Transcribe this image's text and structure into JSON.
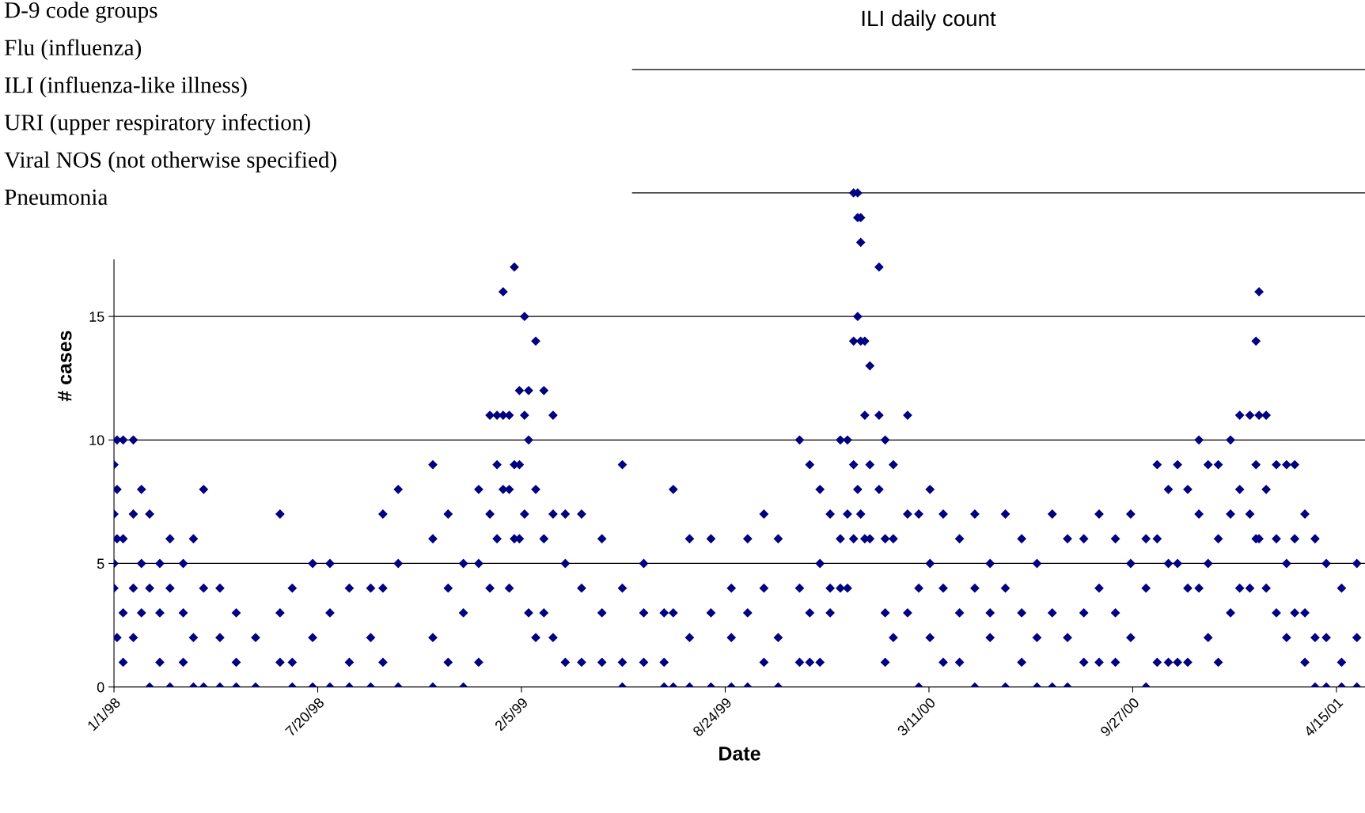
{
  "chart_data": {
    "type": "scatter",
    "title": "ILI daily count",
    "xlabel": "Date",
    "ylabel": "# cases",
    "annotations": [
      "D-9 code groups",
      "Flu (influenza)",
      "ILI (influenza-like illness)",
      "URI (upper respiratory infection)",
      "Viral NOS (not otherwise specified)",
      "Pneumonia"
    ],
    "xlim": [
      "1998-01-01",
      "2001-05-13"
    ],
    "xticks": [
      {
        "value": "1998-01-01",
        "label": "1/1/98"
      },
      {
        "value": "1998-07-20",
        "label": "7/20/98"
      },
      {
        "value": "1999-02-05",
        "label": "2/5/99"
      },
      {
        "value": "1999-08-24",
        "label": "8/24/99"
      },
      {
        "value": "2000-03-11",
        "label": "3/11/00"
      },
      {
        "value": "2000-09-27",
        "label": "9/27/00"
      },
      {
        "value": "2001-04-15",
        "label": "4/15/01"
      }
    ],
    "ylim": [
      0,
      26
    ],
    "yticks": [
      0,
      5,
      10,
      15,
      {
        "value": 20,
        "label": null
      },
      {
        "value": 25,
        "label": null
      }
    ],
    "grid": "y",
    "legend": false,
    "marker": "diamond",
    "series": [
      {
        "color": "#000080",
        "x": [
          "1998-01-01",
          "1998-01-01",
          "1998-01-01",
          "1998-01-01",
          "1998-01-04",
          "1998-01-04",
          "1998-01-04",
          "1998-01-04",
          "1998-01-10",
          "1998-01-10",
          "1998-01-10",
          "1998-01-10",
          "1998-01-20",
          "1998-01-20",
          "1998-01-20",
          "1998-01-20",
          "1998-01-28",
          "1998-01-28",
          "1998-01-28",
          "1998-02-05",
          "1998-02-05",
          "1998-02-05",
          "1998-02-15",
          "1998-02-15",
          "1998-02-15",
          "1998-02-25",
          "1998-02-25",
          "1998-02-25",
          "1998-03-10",
          "1998-03-10",
          "1998-03-10",
          "1998-03-20",
          "1998-03-20",
          "1998-03-20",
          "1998-03-30",
          "1998-03-30",
          "1998-03-30",
          "1998-04-15",
          "1998-04-15",
          "1998-04-15",
          "1998-05-01",
          "1998-05-01",
          "1998-05-01",
          "1998-05-20",
          "1998-05-20",
          "1998-06-13",
          "1998-06-13",
          "1998-06-13",
          "1998-06-25",
          "1998-06-25",
          "1998-06-25",
          "1998-07-15",
          "1998-07-15",
          "1998-07-15",
          "1998-08-01",
          "1998-08-01",
          "1998-08-01",
          "1998-08-20",
          "1998-08-20",
          "1998-08-20",
          "1998-09-10",
          "1998-09-10",
          "1998-09-10",
          "1998-09-22",
          "1998-09-22",
          "1998-09-22",
          "1998-10-07",
          "1998-10-07",
          "1998-10-07",
          "1998-11-10",
          "1998-11-10",
          "1998-11-10",
          "1998-11-10",
          "1998-11-25",
          "1998-11-25",
          "1998-11-25",
          "1998-12-10",
          "1998-12-10",
          "1998-12-10",
          "1998-12-25",
          "1998-12-25",
          "1998-12-25",
          "1999-01-05",
          "1999-01-05",
          "1999-01-05",
          "1999-01-12",
          "1999-01-12",
          "1999-01-12",
          "1999-01-18",
          "1999-01-18",
          "1999-01-18",
          "1999-01-24",
          "1999-01-24",
          "1999-01-24",
          "1999-01-29",
          "1999-01-29",
          "1999-01-29",
          "1999-02-03",
          "1999-02-03",
          "1999-02-03",
          "1999-02-08",
          "1999-02-08",
          "1999-02-08",
          "1999-02-12",
          "1999-02-12",
          "1999-02-12",
          "1999-02-19",
          "1999-02-19",
          "1999-02-19",
          "1999-02-27",
          "1999-02-27",
          "1999-02-27",
          "1999-03-08",
          "1999-03-08",
          "1999-03-08",
          "1999-03-20",
          "1999-03-20",
          "1999-03-20",
          "1999-04-05",
          "1999-04-05",
          "1999-04-05",
          "1999-04-25",
          "1999-04-25",
          "1999-04-25",
          "1999-05-15",
          "1999-05-15",
          "1999-05-15",
          "1999-05-15",
          "1999-06-05",
          "1999-06-05",
          "1999-06-05",
          "1999-06-25",
          "1999-06-25",
          "1999-06-25",
          "1999-07-04",
          "1999-07-04",
          "1999-07-04",
          "1999-07-20",
          "1999-07-20",
          "1999-07-20",
          "1999-08-10",
          "1999-08-10",
          "1999-08-10",
          "1999-08-30",
          "1999-08-30",
          "1999-08-30",
          "1999-09-15",
          "1999-09-15",
          "1999-09-15",
          "1999-10-01",
          "1999-10-01",
          "1999-10-01",
          "1999-10-15",
          "1999-10-15",
          "1999-10-15",
          "1999-11-05",
          "1999-11-05",
          "1999-11-05",
          "1999-11-15",
          "1999-11-15",
          "1999-11-15",
          "1999-11-25",
          "1999-11-25",
          "1999-11-25",
          "1999-12-05",
          "1999-12-05",
          "1999-12-05",
          "1999-12-15",
          "1999-12-15",
          "1999-12-15",
          "1999-12-22",
          "1999-12-22",
          "1999-12-22",
          "1999-12-28",
          "1999-12-28",
          "1999-12-28",
          "1999-12-28",
          "2000-01-01",
          "2000-01-01",
          "2000-01-01",
          "2000-01-01",
          "2000-01-04",
          "2000-01-04",
          "2000-01-04",
          "2000-01-04",
          "2000-01-08",
          "2000-01-08",
          "2000-01-08",
          "2000-01-13",
          "2000-01-13",
          "2000-01-13",
          "2000-01-22",
          "2000-01-22",
          "2000-01-22",
          "2000-01-28",
          "2000-01-28",
          "2000-01-28",
          "2000-01-28",
          "2000-02-05",
          "2000-02-05",
          "2000-02-05",
          "2000-02-19",
          "2000-02-19",
          "2000-02-19",
          "2000-03-01",
          "2000-03-01",
          "2000-03-01",
          "2000-03-12",
          "2000-03-12",
          "2000-03-12",
          "2000-03-25",
          "2000-03-25",
          "2000-03-25",
          "2000-04-10",
          "2000-04-10",
          "2000-04-10",
          "2000-04-25",
          "2000-04-25",
          "2000-04-25",
          "2000-05-10",
          "2000-05-10",
          "2000-05-10",
          "2000-05-25",
          "2000-05-25",
          "2000-05-25",
          "2000-06-10",
          "2000-06-10",
          "2000-06-10",
          "2000-06-25",
          "2000-06-25",
          "2000-06-25",
          "2000-07-10",
          "2000-07-10",
          "2000-07-10",
          "2000-07-25",
          "2000-07-25",
          "2000-07-25",
          "2000-08-10",
          "2000-08-10",
          "2000-08-10",
          "2000-08-25",
          "2000-08-25",
          "2000-08-25",
          "2000-09-10",
          "2000-09-10",
          "2000-09-10",
          "2000-09-25",
          "2000-09-25",
          "2000-09-25",
          "2000-10-10",
          "2000-10-10",
          "2000-10-10",
          "2000-10-21",
          "2000-10-21",
          "2000-10-21",
          "2000-11-01",
          "2000-11-01",
          "2000-11-01",
          "2000-11-10",
          "2000-11-10",
          "2000-11-10",
          "2000-11-20",
          "2000-11-20",
          "2000-11-20",
          "2000-12-01",
          "2000-12-01",
          "2000-12-01",
          "2000-12-10",
          "2000-12-10",
          "2000-12-10",
          "2000-12-20",
          "2000-12-20",
          "2000-12-20",
          "2001-01-01",
          "2001-01-01",
          "2001-01-01",
          "2001-01-10",
          "2001-01-10",
          "2001-01-10",
          "2001-01-20",
          "2001-01-20",
          "2001-01-20",
          "2001-01-26",
          "2001-01-26",
          "2001-01-26",
          "2001-01-29",
          "2001-01-29",
          "2001-01-29",
          "2001-02-05",
          "2001-02-05",
          "2001-02-05",
          "2001-02-15",
          "2001-02-15",
          "2001-02-15",
          "2001-02-25",
          "2001-02-25",
          "2001-02-25",
          "2001-03-05",
          "2001-03-05",
          "2001-03-05",
          "2001-03-15",
          "2001-03-15",
          "2001-03-15",
          "2001-03-25",
          "2001-03-25",
          "2001-03-25",
          "2001-04-05",
          "2001-04-05",
          "2001-04-05",
          "2001-04-20",
          "2001-04-20",
          "2001-04-20",
          "2001-05-05",
          "2001-05-05",
          "2001-05-05"
        ],
        "values": [
          9,
          7,
          5,
          4,
          10,
          8,
          6,
          2,
          10,
          6,
          3,
          1,
          10,
          7,
          4,
          2,
          8,
          5,
          3,
          7,
          4,
          0,
          5,
          3,
          1,
          6,
          4,
          0,
          5,
          3,
          1,
          6,
          2,
          0,
          8,
          4,
          0,
          4,
          2,
          0,
          3,
          1,
          0,
          2,
          0,
          7,
          3,
          1,
          4,
          1,
          0,
          5,
          2,
          0,
          5,
          3,
          0,
          4,
          1,
          0,
          4,
          2,
          0,
          7,
          4,
          1,
          8,
          5,
          0,
          9,
          6,
          2,
          0,
          7,
          4,
          1,
          5,
          3,
          0,
          8,
          5,
          1,
          11,
          7,
          4,
          11,
          9,
          6,
          16,
          11,
          8,
          11,
          8,
          4,
          17,
          9,
          6,
          12,
          9,
          6,
          15,
          11,
          7,
          12,
          10,
          3,
          14,
          8,
          2,
          12,
          6,
          3,
          11,
          7,
          2,
          7,
          5,
          1,
          7,
          4,
          1,
          6,
          3,
          1,
          9,
          4,
          1,
          0,
          5,
          3,
          1,
          3,
          1,
          0,
          8,
          3,
          0,
          6,
          2,
          0,
          6,
          3,
          0,
          4,
          2,
          0,
          6,
          3,
          0,
          7,
          4,
          1,
          6,
          2,
          0,
          10,
          4,
          1,
          9,
          3,
          1,
          8,
          5,
          1,
          7,
          4,
          3,
          10,
          6,
          4,
          10,
          7,
          4,
          20,
          14,
          9,
          6,
          20,
          19,
          15,
          8,
          19,
          18,
          14,
          7,
          14,
          11,
          6,
          13,
          9,
          6,
          17,
          11,
          8,
          10,
          6,
          3,
          1,
          9,
          6,
          2,
          11,
          7,
          3,
          7,
          4,
          0,
          8,
          5,
          2,
          7,
          4,
          1,
          6,
          3,
          1,
          7,
          4,
          0,
          5,
          3,
          2,
          7,
          4,
          0,
          6,
          3,
          1,
          5,
          2,
          0,
          7,
          3,
          0,
          6,
          2,
          0,
          6,
          3,
          1,
          7,
          4,
          1,
          6,
          3,
          1,
          7,
          5,
          2,
          6,
          4,
          0,
          9,
          6,
          1,
          8,
          5,
          1,
          9,
          5,
          1,
          8,
          4,
          1,
          10,
          7,
          4,
          9,
          5,
          2,
          9,
          6,
          1,
          10,
          7,
          3,
          11,
          8,
          4,
          11,
          7,
          4,
          14,
          9,
          6,
          16,
          11,
          6,
          11,
          8,
          4,
          9,
          6,
          3,
          9,
          5,
          2,
          9,
          6,
          3,
          7,
          3,
          1,
          6,
          2,
          0,
          5,
          2,
          0,
          4,
          1,
          0,
          5,
          2,
          0
        ]
      }
    ]
  }
}
